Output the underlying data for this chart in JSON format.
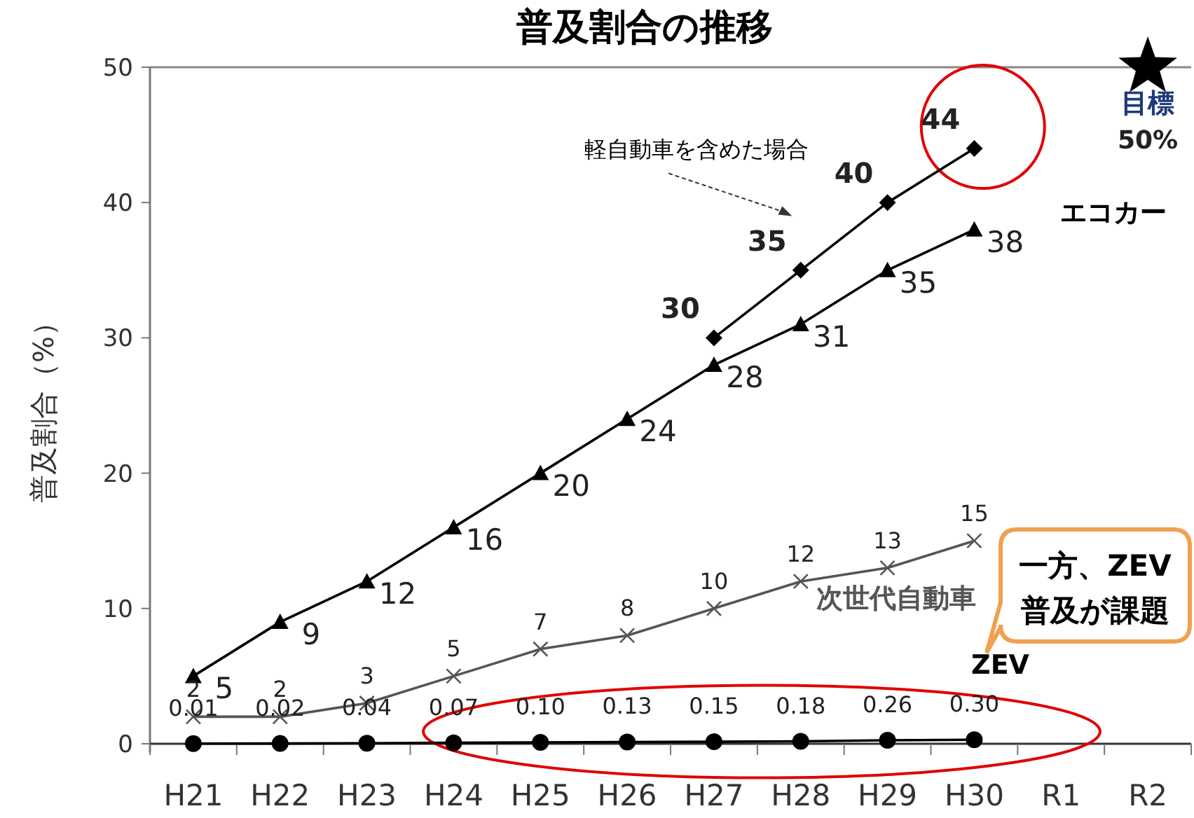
{
  "chart_data": {
    "type": "line",
    "title": "普及割合の推移",
    "ylabel": "普及割合（%）",
    "categories": [
      "H21",
      "H22",
      "H23",
      "H24",
      "H25",
      "H26",
      "H27",
      "H28",
      "H29",
      "H30",
      "R1",
      "R2"
    ],
    "ylim": [
      0,
      50
    ],
    "yticks": [
      0,
      10,
      20,
      30,
      40,
      50
    ],
    "grid": false,
    "legend": false,
    "series": [
      {
        "name": "エコカー",
        "color": "#000000",
        "marker": "triangle",
        "values": [
          5,
          9,
          12,
          16,
          20,
          24,
          28,
          31,
          35,
          38,
          null,
          null
        ],
        "value_labels": [
          "5",
          "9",
          "12",
          "16",
          "20",
          "24",
          "28",
          "31",
          "35",
          "38",
          null,
          null
        ]
      },
      {
        "name": "軽自動車を含めた場合",
        "color": "#000000",
        "marker": "diamond",
        "values": [
          null,
          null,
          null,
          null,
          null,
          null,
          30,
          35,
          40,
          44,
          null,
          null
        ],
        "value_labels": [
          null,
          null,
          null,
          null,
          null,
          null,
          "30",
          "35",
          "40",
          "44",
          null,
          null
        ]
      },
      {
        "name": "次世代自動車",
        "color": "#555555",
        "marker": "cross",
        "values": [
          2,
          2,
          3,
          5,
          7,
          8,
          10,
          12,
          13,
          15,
          null,
          null
        ],
        "value_labels": [
          "2",
          "2",
          "3",
          "5",
          "7",
          "8",
          "10",
          "12",
          "13",
          "15",
          null,
          null
        ]
      },
      {
        "name": "ZEV",
        "color": "#000000",
        "marker": "circle",
        "values": [
          0.01,
          0.02,
          0.04,
          0.07,
          0.1,
          0.13,
          0.15,
          0.18,
          0.26,
          0.3,
          null,
          null
        ],
        "value_labels": [
          "0.01",
          "0.02",
          "0.04",
          "0.07",
          "0.10",
          "0.13",
          "0.15",
          "0.18",
          "0.26",
          "0.30",
          null,
          null
        ]
      },
      {
        "name": "目標",
        "type": "scatter",
        "color": "#000000",
        "marker": "star",
        "values": [
          null,
          null,
          null,
          null,
          null,
          null,
          null,
          null,
          null,
          null,
          null,
          50
        ],
        "value_labels": [
          null,
          null,
          null,
          null,
          null,
          null,
          null,
          null,
          null,
          null,
          null,
          "50%"
        ]
      }
    ],
    "annotations": [
      "一方、ZEV\n普及が課題"
    ]
  }
}
